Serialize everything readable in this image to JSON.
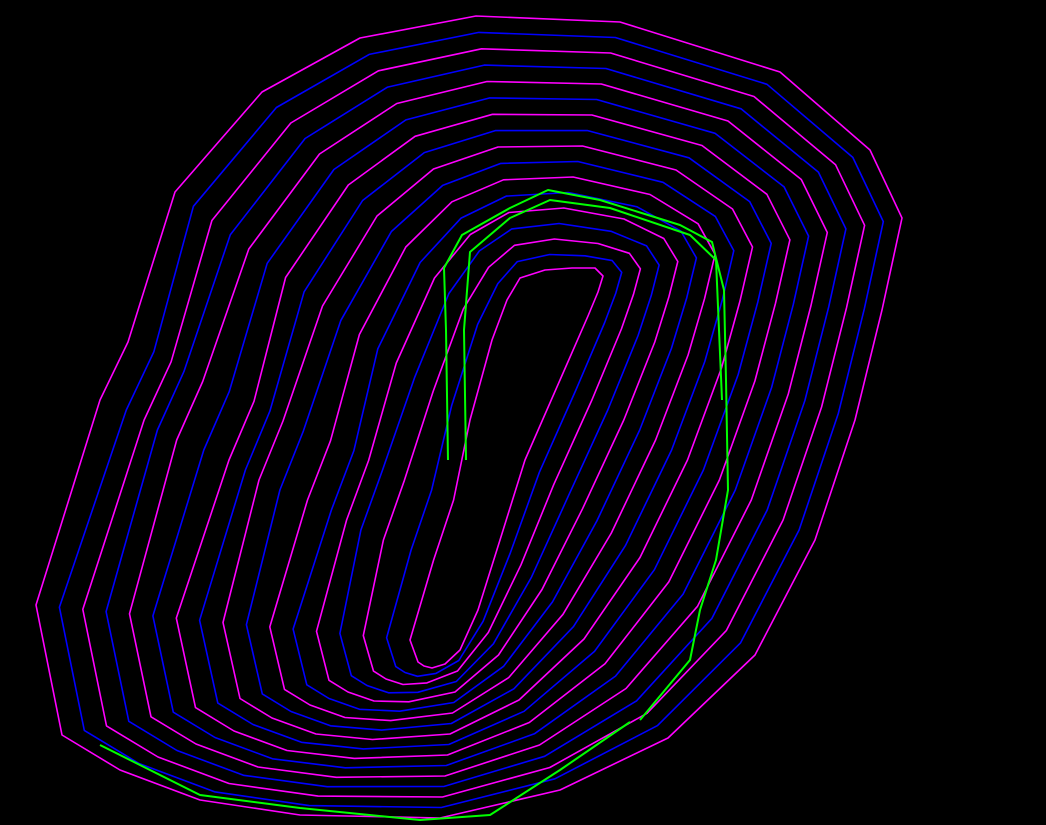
{
  "viewport": {
    "background_color": "#000000"
  },
  "drawing": {
    "type": "pit contour plan view",
    "line_colors": {
      "crest": "#ff00ff",
      "toe": "#0000ff",
      "ramp": "#00ff00"
    },
    "contour_loops": 17,
    "ramp_segments": 3
  }
}
